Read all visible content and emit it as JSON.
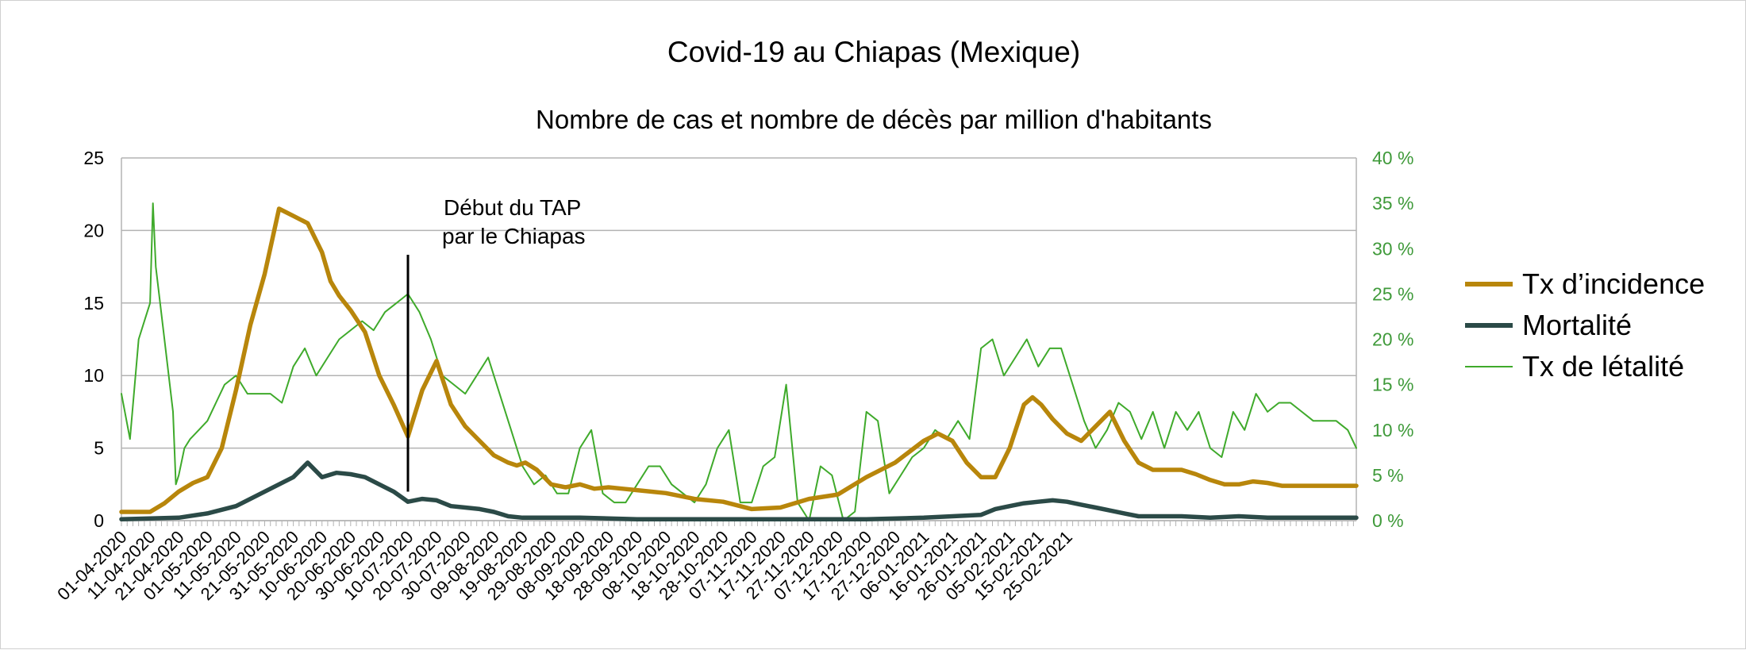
{
  "chart_data": {
    "type": "line",
    "title": "Covid-19 au Chiapas (Mexique)",
    "subtitle": "Nombre de cas et nombre de décès par million d'habitants",
    "xlabel": "",
    "ylabel": "",
    "ylim": [
      0,
      25
    ],
    "y2lim": [
      0,
      40
    ],
    "y2_unit": "%",
    "yticks": [
      "0",
      "5",
      "10",
      "15",
      "20",
      "25"
    ],
    "y2ticks": [
      "0 %",
      "5 %",
      "10 %",
      "15 %",
      "20 %",
      "25 %",
      "30 %",
      "35 %",
      "40 %"
    ],
    "x_tick_labels": [
      "01-04-2020",
      "11-04-2020",
      "21-04-2020",
      "01-05-2020",
      "11-05-2020",
      "21-05-2020",
      "31-05-2020",
      "10-06-2020",
      "20-06-2020",
      "30-06-2020",
      "10-07-2020",
      "20-07-2020",
      "30-07-2020",
      "09-08-2020",
      "19-08-2020",
      "29-08-2020",
      "08-09-2020",
      "18-09-2020",
      "28-09-2020",
      "08-10-2020",
      "18-10-2020",
      "28-10-2020",
      "07-11-2020",
      "17-11-2020",
      "27-11-2020",
      "07-12-2020",
      "17-12-2020",
      "27-12-2020",
      "06-01-2021",
      "16-01-2021",
      "26-01-2021",
      "05-02-2021",
      "15-02-2021",
      "25-02-2021"
    ],
    "grid": true,
    "legend_position": "right",
    "series": [
      {
        "name": "Tx d’incidence",
        "axis": "left",
        "color": "#b8860b",
        "x": [
          0,
          10,
          15,
          20,
          25,
          30,
          35,
          40,
          45,
          50,
          55,
          60,
          65,
          70,
          73,
          76,
          80,
          85,
          90,
          95,
          100,
          105,
          110,
          115,
          120,
          125,
          130,
          135,
          138,
          141,
          145,
          150,
          155,
          160,
          165,
          170,
          175,
          180,
          190,
          200,
          210,
          220,
          230,
          240,
          250,
          260,
          270,
          280,
          285,
          290,
          295,
          300,
          305,
          310,
          315,
          318,
          321,
          325,
          330,
          335,
          340,
          345,
          350,
          355,
          360,
          365,
          370,
          375,
          380,
          385,
          390,
          395,
          400,
          405,
          410,
          415,
          420,
          425,
          431
        ],
        "values": [
          0.6,
          0.6,
          1.2,
          2.0,
          2.6,
          3.0,
          5.0,
          9.0,
          13.5,
          17.0,
          21.5,
          21.0,
          20.5,
          18.5,
          16.5,
          15.5,
          14.5,
          13.0,
          10.0,
          8.0,
          5.8,
          9.0,
          11.0,
          8.0,
          6.5,
          5.5,
          4.5,
          4.0,
          3.8,
          4.0,
          3.5,
          2.5,
          2.3,
          2.5,
          2.2,
          2.3,
          2.2,
          2.1,
          1.9,
          1.5,
          1.3,
          0.8,
          0.9,
          1.5,
          1.8,
          3.0,
          4.0,
          5.5,
          6.0,
          5.5,
          4.0,
          3.0,
          3.0,
          5.0,
          8.0,
          8.5,
          8.0,
          7.0,
          6.0,
          5.5,
          6.5,
          7.5,
          5.5,
          4.0,
          3.5,
          3.5,
          3.5,
          3.2,
          2.8,
          2.5,
          2.5,
          2.7,
          2.6,
          2.4,
          2.4,
          2.4,
          2.4,
          2.4,
          2.4
        ]
      },
      {
        "name": "Mortalité",
        "axis": "left",
        "color": "#2b4a47",
        "x": [
          0,
          20,
          30,
          40,
          50,
          60,
          65,
          70,
          75,
          80,
          85,
          90,
          95,
          100,
          105,
          110,
          115,
          120,
          125,
          130,
          135,
          140,
          150,
          160,
          180,
          200,
          220,
          240,
          260,
          280,
          290,
          300,
          305,
          310,
          315,
          320,
          325,
          330,
          335,
          340,
          345,
          350,
          355,
          360,
          370,
          380,
          390,
          400,
          410,
          420,
          431
        ],
        "values": [
          0.1,
          0.2,
          0.5,
          1.0,
          2.0,
          3.0,
          4.0,
          3.0,
          3.3,
          3.2,
          3.0,
          2.5,
          2.0,
          1.3,
          1.5,
          1.4,
          1.0,
          0.9,
          0.8,
          0.6,
          0.3,
          0.2,
          0.2,
          0.2,
          0.1,
          0.1,
          0.1,
          0.1,
          0.1,
          0.2,
          0.3,
          0.4,
          0.8,
          1.0,
          1.2,
          1.3,
          1.4,
          1.3,
          1.1,
          0.9,
          0.7,
          0.5,
          0.3,
          0.3,
          0.3,
          0.2,
          0.3,
          0.2,
          0.2,
          0.2,
          0.2
        ]
      },
      {
        "name": "Tx de létalité",
        "axis": "right",
        "color": "#3faa2b",
        "x": [
          0,
          3,
          6,
          9,
          10,
          11,
          12,
          15,
          18,
          19,
          20,
          22,
          24,
          27,
          30,
          33,
          36,
          40,
          44,
          48,
          52,
          56,
          60,
          64,
          68,
          72,
          76,
          80,
          84,
          88,
          92,
          96,
          100,
          104,
          108,
          112,
          116,
          120,
          124,
          128,
          132,
          136,
          140,
          144,
          148,
          152,
          156,
          160,
          164,
          168,
          172,
          176,
          180,
          184,
          188,
          192,
          196,
          200,
          204,
          208,
          212,
          216,
          220,
          224,
          228,
          232,
          236,
          240,
          244,
          248,
          252,
          256,
          260,
          264,
          268,
          272,
          276,
          280,
          284,
          288,
          292,
          296,
          300,
          304,
          308,
          312,
          316,
          320,
          324,
          328,
          332,
          336,
          340,
          344,
          348,
          352,
          356,
          360,
          364,
          368,
          372,
          376,
          380,
          384,
          388,
          392,
          396,
          400,
          404,
          408,
          412,
          416,
          420,
          424,
          428,
          431
        ],
        "values": [
          14,
          9,
          20,
          23,
          24,
          35,
          28,
          20,
          12,
          4,
          5,
          8,
          9,
          10,
          11,
          13,
          15,
          16,
          14,
          14,
          14,
          13,
          17,
          19,
          16,
          18,
          20,
          21,
          22,
          21,
          23,
          24,
          25,
          23,
          20,
          16,
          15,
          14,
          16,
          18,
          14,
          10,
          6,
          4,
          5,
          3,
          3,
          8,
          10,
          3,
          2,
          2,
          4,
          6,
          6,
          4,
          3,
          2,
          4,
          8,
          10,
          2,
          2,
          6,
          7,
          15,
          2,
          0,
          6,
          5,
          0,
          1,
          12,
          11,
          3,
          5,
          7,
          8,
          10,
          9,
          11,
          9,
          19,
          20,
          16,
          18,
          20,
          17,
          19,
          19,
          15,
          11,
          8,
          10,
          13,
          12,
          9,
          12,
          8,
          12,
          10,
          12,
          8,
          7,
          12,
          10,
          14,
          12,
          13,
          13,
          12,
          11,
          11,
          11,
          10,
          8
        ]
      }
    ],
    "annotation": {
      "line1": "Début du TAP",
      "line2": "par le Chiapas",
      "x": 100
    },
    "x_max_index": 431
  }
}
